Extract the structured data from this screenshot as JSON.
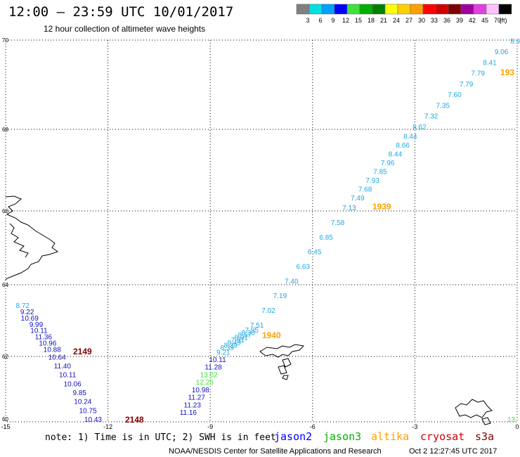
{
  "header": {
    "title": "12:00 – 23:59 UTC 10/01/2017",
    "subtitle": "12 hour collection of altimeter wave heights"
  },
  "legend": {
    "unit": "(ft)",
    "bins": [
      {
        "label": "3",
        "color": "#808080"
      },
      {
        "label": "6",
        "color": "#00e0e0"
      },
      {
        "label": "9",
        "color": "#00a0ff"
      },
      {
        "label": "12",
        "color": "#0000ff"
      },
      {
        "label": "15",
        "color": "#40e040"
      },
      {
        "label": "18",
        "color": "#00b000"
      },
      {
        "label": "21",
        "color": "#008000"
      },
      {
        "label": "24",
        "color": "#ffff00"
      },
      {
        "label": "27",
        "color": "#ffd000"
      },
      {
        "label": "30",
        "color": "#ffa000"
      },
      {
        "label": "33",
        "color": "#ff0000"
      },
      {
        "label": "36",
        "color": "#d00000"
      },
      {
        "label": "39",
        "color": "#800000"
      },
      {
        "label": "42",
        "color": "#a000a0"
      },
      {
        "label": "45",
        "color": "#e040e0"
      },
      {
        "label": "70",
        "color": "#ffc0ff"
      },
      {
        "label": "",
        "color": "#000000"
      }
    ]
  },
  "axes": {
    "lat_ticks": [
      "70",
      "68",
      "66",
      "64",
      "62",
      "60"
    ],
    "lon_ticks": [
      "-15",
      "-12",
      "-9",
      "-6",
      "-3",
      "0"
    ]
  },
  "track_colors": {
    "light_blue": "#20a8e0",
    "dark_blue": "#1010c0",
    "green": "#40e040",
    "orange": "#ffa000",
    "dark_red": "#800000"
  },
  "tracks": {
    "main_track": [
      {
        "v": "8.9",
        "c": "light_blue"
      },
      {
        "v": "9.06",
        "c": "light_blue"
      },
      {
        "v": "8.41",
        "c": "light_blue"
      },
      {
        "v": "7.79",
        "c": "light_blue"
      },
      {
        "v": "7.79",
        "c": "light_blue"
      },
      {
        "v": "7.60",
        "c": "light_blue"
      },
      {
        "v": "7.35",
        "c": "light_blue"
      },
      {
        "v": "7.32",
        "c": "light_blue"
      },
      {
        "v": "8.62",
        "c": "light_blue"
      },
      {
        "v": "8.44",
        "c": "light_blue"
      },
      {
        "v": "8.66",
        "c": "light_blue"
      },
      {
        "v": "8.44",
        "c": "light_blue"
      },
      {
        "v": "7.96",
        "c": "light_blue"
      },
      {
        "v": "7.85",
        "c": "light_blue"
      },
      {
        "v": "7.93",
        "c": "light_blue"
      },
      {
        "v": "7.68",
        "c": "light_blue"
      },
      {
        "v": "7.49",
        "c": "light_blue"
      },
      {
        "v": "7.13",
        "c": "light_blue"
      },
      {
        "v": "7.58",
        "c": "light_blue"
      },
      {
        "v": "6.85",
        "c": "light_blue"
      },
      {
        "v": "6.45",
        "c": "light_blue"
      },
      {
        "v": "6.63",
        "c": "light_blue"
      },
      {
        "v": "7.40",
        "c": "light_blue"
      },
      {
        "v": "7.19",
        "c": "light_blue"
      },
      {
        "v": "7.02",
        "c": "light_blue"
      },
      {
        "v": "7.51",
        "c": "light_blue"
      },
      {
        "v": "7.95",
        "c": "light_blue"
      },
      {
        "v": "8.30",
        "c": "light_blue"
      },
      {
        "v": "8.57",
        "c": "light_blue"
      },
      {
        "v": "8.01",
        "c": "light_blue"
      },
      {
        "v": "7.91",
        "c": "light_blue"
      },
      {
        "v": "8.49",
        "c": "light_blue"
      },
      {
        "v": "8.39",
        "c": "light_blue"
      },
      {
        "v": "8.39",
        "c": "light_blue"
      },
      {
        "v": "9.21",
        "c": "light_blue"
      },
      {
        "v": "10.11",
        "c": "dark_blue"
      },
      {
        "v": "11.28",
        "c": "dark_blue"
      },
      {
        "v": "13.62",
        "c": "green"
      },
      {
        "v": "12.25",
        "c": "green"
      },
      {
        "v": "10.98",
        "c": "dark_blue"
      },
      {
        "v": "11.27",
        "c": "dark_blue"
      },
      {
        "v": "11.23",
        "c": "dark_blue"
      },
      {
        "v": "11.16",
        "c": "dark_blue"
      }
    ],
    "west_track": [
      {
        "v": "8.72",
        "c": "light_blue"
      },
      {
        "v": "9.22",
        "c": "dark_blue"
      },
      {
        "v": "10.69",
        "c": "dark_blue"
      },
      {
        "v": "9.99",
        "c": "dark_blue"
      },
      {
        "v": "10.11",
        "c": "dark_blue"
      },
      {
        "v": "11.36",
        "c": "dark_blue"
      },
      {
        "v": "10.96",
        "c": "dark_blue"
      },
      {
        "v": "10.88",
        "c": "dark_blue"
      },
      {
        "v": "10.64",
        "c": "dark_blue"
      },
      {
        "v": "11.40",
        "c": "dark_blue"
      },
      {
        "v": "10.11",
        "c": "dark_blue"
      },
      {
        "v": "10.06",
        "c": "dark_blue"
      },
      {
        "v": "9.85",
        "c": "dark_blue"
      },
      {
        "v": "10.24",
        "c": "dark_blue"
      },
      {
        "v": "10.75",
        "c": "dark_blue"
      },
      {
        "v": "10.43",
        "c": "dark_blue"
      }
    ],
    "corner_value": {
      "v": "13.",
      "c": "green"
    }
  },
  "time_labels": [
    {
      "t": "193",
      "c": "orange"
    },
    {
      "t": "1939",
      "c": "orange"
    },
    {
      "t": "1940",
      "c": "orange"
    },
    {
      "t": "2149",
      "c": "dark_red"
    },
    {
      "t": "2148",
      "c": "dark_red"
    }
  ],
  "footer": {
    "note": "note: 1) Time is in UTC; 2) SWH is in feet",
    "satellites": [
      {
        "name": "jason2",
        "color": "#0000ff"
      },
      {
        "name": "jason3",
        "color": "#00b000"
      },
      {
        "name": "altika",
        "color": "#ffa000"
      },
      {
        "name": "cryosat",
        "color": "#d00000"
      },
      {
        "name": "s3a",
        "color": "#800000"
      }
    ],
    "credit": "NOAA/NESDIS Center for Satellite Applications and Research",
    "timestamp": "Oct  2 12:27:45 UTC 2017"
  }
}
